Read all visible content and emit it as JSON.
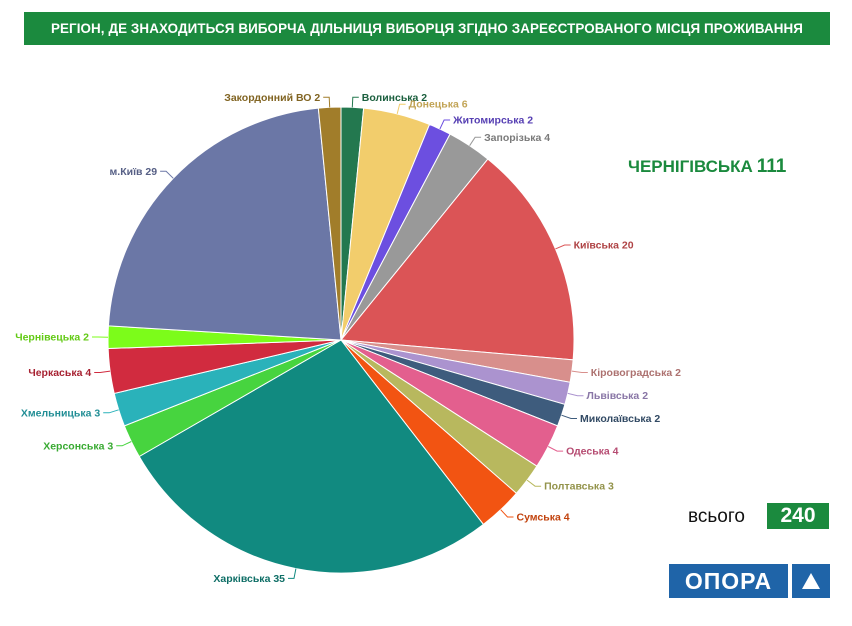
{
  "title": "РЕГІОН, ДЕ ЗНАХОДИТЬСЯ ВИБОРЧА ДІЛЬНИЦЯ ВИБОРЦЯ ЗГІДНО ЗАРЕЄСТРОВАНОГО МІСЦЯ ПРОЖИВАННЯ",
  "highlight": {
    "label": "ЧЕРНІГІВСЬКА",
    "value": "111"
  },
  "total": {
    "label": "всього",
    "value": "240"
  },
  "logo": {
    "text": "ОПОРА",
    "icon": "triangle-icon",
    "color": "#1f64a8"
  },
  "chart_data": {
    "type": "pie",
    "start_angle_deg": 0,
    "direction": "clockwise",
    "slices": [
      {
        "label": "Волинська",
        "value": 2,
        "color": "#23784f",
        "display": "Волинська 2"
      },
      {
        "label": "Донецька",
        "value": 6,
        "color": "#f2cd6c",
        "display": "Донецька 6"
      },
      {
        "label": "Житомирська",
        "value": 2,
        "color": "#6c4fe0",
        "display": "Житомирська 2"
      },
      {
        "label": "Запорізька",
        "value": 4,
        "color": "#999999",
        "display": "Запорізька 4"
      },
      {
        "label": "Київська",
        "value": 20,
        "color": "#db5456",
        "display": "Київська 20"
      },
      {
        "label": "Кіровоградська",
        "value": 2,
        "color": "#d88f8c",
        "display": "Кіровоградська 2"
      },
      {
        "label": "Львівська",
        "value": 2,
        "color": "#ab93cf",
        "display": "Львівська 2"
      },
      {
        "label": "Миколаївська",
        "value": 2,
        "color": "#3e5c7d",
        "display": "Миколаївська 2"
      },
      {
        "label": "Одеська",
        "value": 4,
        "color": "#e35f8e",
        "display": "Одеська 4"
      },
      {
        "label": "Полтавська",
        "value": 3,
        "color": "#b8b85e",
        "display": "Полтавська 3"
      },
      {
        "label": "Сумська",
        "value": 4,
        "color": "#f25412",
        "display": "Сумська 4"
      },
      {
        "label": "Харківська",
        "value": 35,
        "color": "#118a80",
        "display": "Харківська 35"
      },
      {
        "label": "Херсонська",
        "value": 3,
        "color": "#47d43f",
        "display": "Херсонська 3"
      },
      {
        "label": "Хмельницька",
        "value": 3,
        "color": "#2ab2ba",
        "display": "Хмельницька 3"
      },
      {
        "label": "Черкаська",
        "value": 4,
        "color": "#d12b3f",
        "display": "Черкаська 4"
      },
      {
        "label": "Чернівецька",
        "value": 2,
        "color": "#7cfc1a",
        "display": "Чернівецька 2"
      },
      {
        "label": "м.Київ",
        "value": 29,
        "color": "#6b77a6",
        "display": "м.Київ 29"
      },
      {
        "label": "Закордонний ВО",
        "value": 2,
        "color": "#a17d2a",
        "display": "Закордонний ВО 2"
      }
    ]
  }
}
